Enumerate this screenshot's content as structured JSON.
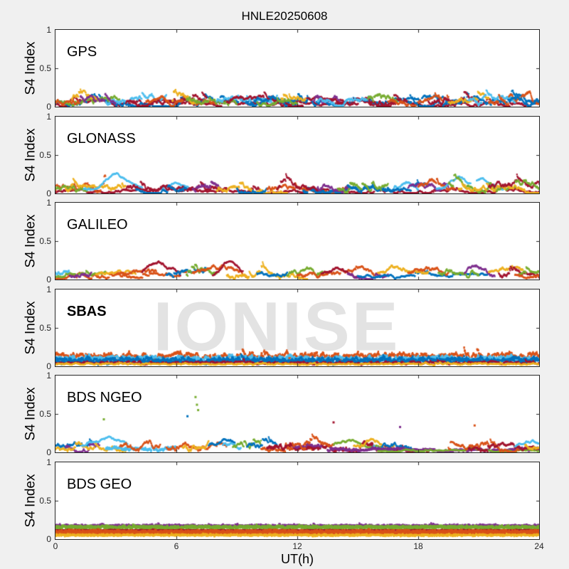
{
  "title": "HNLE20250608",
  "xlabel": "UT(h)",
  "ylabel": "S4 Index",
  "watermark": "IONISE",
  "colors": {
    "background": "#F0F0F0",
    "panel_bg": "#FFFFFF",
    "axes": "#262626",
    "watermark": "#E3E3E3",
    "palette": [
      "#0072BD",
      "#D95319",
      "#EDB120",
      "#7E2F8E",
      "#77AC30",
      "#4DBEEE",
      "#A2142F"
    ]
  },
  "x_ticks": {
    "values": [
      0,
      6,
      12,
      18,
      24
    ],
    "labels": [
      "0",
      "6",
      "12",
      "18",
      "24"
    ]
  },
  "y_ticks": {
    "values": [
      0,
      0.5,
      1
    ],
    "labels": [
      "0",
      "0.5",
      "1"
    ]
  },
  "chart_data": [
    {
      "type": "scatter",
      "label": "GPS",
      "label_bold": false,
      "watermark": false,
      "xlim": [
        0,
        24
      ],
      "ylim": [
        0,
        1
      ],
      "grid": false,
      "series": [
        {
          "c": 6,
          "t0": 0,
          "t1": 24,
          "b": 0.035,
          "n": 0.035
        },
        {
          "c": 0,
          "t0": 0,
          "t1": 24,
          "b": 0.05,
          "n": 0.045
        },
        {
          "c": 4,
          "t0": 0,
          "t1": 3.2,
          "b": 0.08,
          "n": 0.05
        },
        {
          "c": 2,
          "t0": 0.8,
          "t1": 2.2,
          "b": 0.1,
          "n": 0.06
        },
        {
          "c": 5,
          "t0": 2.5,
          "t1": 5.5,
          "b": 0.07,
          "n": 0.05
        },
        {
          "c": 6,
          "t0": 3.5,
          "t1": 7.5,
          "b": 0.06,
          "n": 0.05
        },
        {
          "c": 3,
          "t0": 1.2,
          "t1": 3.0,
          "b": 0.07,
          "n": 0.05
        },
        {
          "c": 1,
          "t0": 4.5,
          "t1": 8.0,
          "b": 0.06,
          "n": 0.05
        },
        {
          "c": 2,
          "t0": 5.8,
          "t1": 7.0,
          "b": 0.09,
          "n": 0.06
        },
        {
          "c": 4,
          "t0": 6.5,
          "t1": 9.0,
          "b": 0.08,
          "n": 0.055
        },
        {
          "c": 5,
          "t0": 8.0,
          "t1": 11.0,
          "b": 0.08,
          "n": 0.05
        },
        {
          "c": 6,
          "t0": 8.5,
          "t1": 13.5,
          "b": 0.055,
          "n": 0.045
        },
        {
          "c": 0,
          "t0": 9.5,
          "t1": 12.5,
          "b": 0.06,
          "n": 0.05
        },
        {
          "c": 2,
          "t0": 11.2,
          "t1": 12.4,
          "b": 0.1,
          "n": 0.06
        },
        {
          "c": 3,
          "t0": 12.8,
          "t1": 14.2,
          "b": 0.09,
          "n": 0.06
        },
        {
          "c": 6,
          "t0": 13.5,
          "t1": 17.5,
          "b": 0.06,
          "n": 0.05
        },
        {
          "c": 5,
          "t0": 13.0,
          "t1": 15.5,
          "b": 0.07,
          "n": 0.05
        },
        {
          "c": 4,
          "t0": 15.5,
          "t1": 17.0,
          "b": 0.09,
          "n": 0.06
        },
        {
          "c": 1,
          "t0": 16.5,
          "t1": 19.5,
          "b": 0.06,
          "n": 0.05
        },
        {
          "c": 0,
          "t0": 17.5,
          "t1": 20.5,
          "b": 0.055,
          "n": 0.05
        },
        {
          "c": 6,
          "t0": 18.5,
          "t1": 21.0,
          "b": 0.08,
          "n": 0.055
        },
        {
          "c": 2,
          "t0": 19.5,
          "t1": 21.5,
          "b": 0.07,
          "n": 0.05
        },
        {
          "c": 5,
          "t0": 20.5,
          "t1": 23.0,
          "b": 0.07,
          "n": 0.05
        },
        {
          "c": 1,
          "t0": 21.5,
          "t1": 24,
          "b": 0.07,
          "n": 0.055
        },
        {
          "c": 0,
          "t0": 22.5,
          "t1": 24,
          "b": 0.08,
          "n": 0.05
        },
        {
          "c": 4,
          "t0": 10,
          "t1": 12,
          "b": 0.05,
          "n": 0.04
        },
        {
          "c": 1,
          "t0": 0,
          "t1": 1.2,
          "b": 0.06,
          "n": 0.05
        }
      ]
    },
    {
      "type": "scatter",
      "label": "GLONASS",
      "label_bold": false,
      "watermark": false,
      "xlim": [
        0,
        24
      ],
      "ylim": [
        0,
        1
      ],
      "grid": false,
      "series": [
        {
          "c": 6,
          "t0": 0,
          "t1": 24,
          "b": 0.025,
          "n": 0.025
        },
        {
          "c": 1,
          "t0": 0,
          "t1": 2.5,
          "b": 0.06,
          "n": 0.05
        },
        {
          "c": 4,
          "t0": 0,
          "t1": 1.8,
          "b": 0.07,
          "n": 0.05
        },
        {
          "c": 2,
          "t0": 0.5,
          "t1": 3.5,
          "b": 0.06,
          "n": 0.05
        },
        {
          "c": 5,
          "t0": 1.4,
          "t1": 4.3,
          "b": 0.06,
          "n": 0.025,
          "p": 0.18,
          "tc": 3.05,
          "w": 0.55
        },
        {
          "c": 5,
          "t0": 5.2,
          "t1": 6.6,
          "b": 0.05,
          "n": 0.025,
          "p": 0.11,
          "tc": 6.0,
          "w": 0.4
        },
        {
          "c": 6,
          "t0": 3.5,
          "t1": 8.5,
          "b": 0.05,
          "n": 0.05
        },
        {
          "c": 0,
          "t0": 4.0,
          "t1": 6.5,
          "b": 0.05,
          "n": 0.04
        },
        {
          "c": 3,
          "t0": 6.8,
          "t1": 8.2,
          "b": 0.06,
          "n": 0.05
        },
        {
          "c": 2,
          "t0": 8.0,
          "t1": 11.5,
          "b": 0.055,
          "n": 0.05
        },
        {
          "c": 0,
          "t0": 9.0,
          "t1": 10.5,
          "b": 0.07,
          "n": 0.05
        },
        {
          "c": 1,
          "t0": 10.5,
          "t1": 14.5,
          "b": 0.055,
          "n": 0.05
        },
        {
          "c": 0,
          "t0": 12.3,
          "t1": 16.8,
          "b": 0.03,
          "n": 0.035,
          "th": 2
        },
        {
          "c": 6,
          "t0": 11.0,
          "t1": 13.0,
          "b": 0.06,
          "n": 0.05
        },
        {
          "c": 3,
          "t0": 13.0,
          "t1": 14.5,
          "b": 0.07,
          "n": 0.05
        },
        {
          "c": 4,
          "t0": 14.0,
          "t1": 16.5,
          "b": 0.06,
          "n": 0.05
        },
        {
          "c": 5,
          "t0": 16.8,
          "t1": 18.0,
          "b": 0.06,
          "n": 0.035,
          "p": 0.07,
          "tc": 17.4,
          "w": 0.35
        },
        {
          "c": 0,
          "t0": 16.5,
          "t1": 18.5,
          "b": 0.06,
          "n": 0.04
        },
        {
          "c": 3,
          "t0": 17.5,
          "t1": 19.5,
          "b": 0.065,
          "n": 0.05
        },
        {
          "c": 1,
          "t0": 18.0,
          "t1": 19.8,
          "b": 0.07,
          "n": 0.05
        },
        {
          "c": 5,
          "t0": 18.9,
          "t1": 20.6,
          "b": 0.05,
          "n": 0.025,
          "p": 0.15,
          "tc": 20.1,
          "w": 0.5
        },
        {
          "c": 5,
          "t0": 20.9,
          "t1": 22.3,
          "b": 0.05,
          "n": 0.025,
          "p": 0.12,
          "tc": 21.0,
          "w": 0.55
        },
        {
          "c": 4,
          "t0": 19.5,
          "t1": 22.5,
          "b": 0.06,
          "n": 0.05
        },
        {
          "c": 2,
          "t0": 20.0,
          "t1": 24,
          "b": 0.06,
          "n": 0.05
        },
        {
          "c": 6,
          "t0": 21.5,
          "t1": 24,
          "b": 0.07,
          "n": 0.055
        },
        {
          "c": 4,
          "t0": 22.8,
          "t1": 24,
          "b": 0.08,
          "n": 0.05
        }
      ]
    },
    {
      "type": "scatter",
      "label": "GALILEO",
      "label_bold": false,
      "watermark": false,
      "xlim": [
        0,
        24
      ],
      "ylim": [
        0,
        1
      ],
      "grid": false,
      "series": [
        {
          "c": 1,
          "t0": 0,
          "t1": 6.5,
          "b": 0.035,
          "n": 0.03
        },
        {
          "c": 4,
          "t0": 0,
          "t1": 2.5,
          "b": 0.04,
          "n": 0.03
        },
        {
          "c": 5,
          "t0": 0,
          "t1": 0.7,
          "b": 0.09,
          "n": 0.04
        },
        {
          "c": 3,
          "t0": 0.7,
          "t1": 1.8,
          "b": 0.07,
          "n": 0.04
        },
        {
          "c": 2,
          "t0": 2.0,
          "t1": 4.0,
          "b": 0.05,
          "n": 0.03,
          "p": 0.06,
          "tc": 3.0,
          "w": 0.6
        },
        {
          "c": 1,
          "t0": 3.0,
          "t1": 5.0,
          "b": 0.05,
          "n": 0.04,
          "p": 0.08,
          "tc": 4.2,
          "w": 0.6
        },
        {
          "c": 6,
          "t0": 4.3,
          "t1": 6.2,
          "b": 0.05,
          "n": 0.03,
          "p": 0.17,
          "tc": 5.1,
          "w": 0.5
        },
        {
          "c": 0,
          "t0": 5.5,
          "t1": 7.5,
          "b": 0.06,
          "n": 0.04
        },
        {
          "c": 4,
          "t0": 6.5,
          "t1": 8.0,
          "b": 0.07,
          "n": 0.05
        },
        {
          "c": 1,
          "t0": 6.8,
          "t1": 9.5,
          "b": 0.05,
          "n": 0.04,
          "p": 0.09,
          "tc": 8.0,
          "w": 0.8
        },
        {
          "c": 6,
          "t0": 7.8,
          "t1": 9.3,
          "b": 0.05,
          "n": 0.03,
          "p": 0.22,
          "tc": 8.7,
          "w": 0.35
        },
        {
          "c": 2,
          "t0": 8.5,
          "t1": 12.5,
          "b": 0.06,
          "n": 0.05
        },
        {
          "c": 0,
          "t0": 10.0,
          "t1": 11.5,
          "b": 0.07,
          "n": 0.04
        },
        {
          "c": 4,
          "t0": 11.5,
          "t1": 13.5,
          "b": 0.055,
          "n": 0.04,
          "p": 0.07,
          "tc": 12.6,
          "w": 0.5
        },
        {
          "c": 1,
          "t0": 12.0,
          "t1": 16.0,
          "b": 0.05,
          "n": 0.04
        },
        {
          "c": 6,
          "t0": 13.2,
          "t1": 15.0,
          "b": 0.05,
          "n": 0.03,
          "p": 0.1,
          "tc": 14.0,
          "w": 0.5
        },
        {
          "c": 3,
          "t0": 14.5,
          "t1": 16.5,
          "b": 0.06,
          "n": 0.04
        },
        {
          "c": 0,
          "t0": 15.0,
          "t1": 21.5,
          "b": 0.04,
          "n": 0.025
        },
        {
          "c": 2,
          "t0": 16.0,
          "t1": 18.5,
          "b": 0.06,
          "n": 0.04,
          "p": 0.08,
          "tc": 17.2,
          "w": 0.7
        },
        {
          "c": 1,
          "t0": 17.5,
          "t1": 19.5,
          "b": 0.06,
          "n": 0.04,
          "p": 0.09,
          "tc": 18.5,
          "w": 0.6
        },
        {
          "c": 4,
          "t0": 19.0,
          "t1": 21.0,
          "b": 0.07,
          "n": 0.05
        },
        {
          "c": 3,
          "t0": 20.3,
          "t1": 21.8,
          "b": 0.06,
          "n": 0.04,
          "p": 0.1,
          "tc": 21.0,
          "w": 0.4
        },
        {
          "c": 2,
          "t0": 21.5,
          "t1": 23.2,
          "b": 0.06,
          "n": 0.04,
          "p": 0.11,
          "tc": 22.4,
          "w": 0.5
        },
        {
          "c": 6,
          "t0": 22.0,
          "t1": 24,
          "b": 0.07,
          "n": 0.05
        },
        {
          "c": 4,
          "t0": 23.0,
          "t1": 24,
          "b": 0.06,
          "n": 0.04
        },
        {
          "c": 1,
          "t0": 22.8,
          "t1": 24,
          "b": 0.05,
          "n": 0.03
        }
      ]
    },
    {
      "type": "scatter",
      "label": "SBAS",
      "label_bold": true,
      "watermark": true,
      "xlim": [
        0,
        24
      ],
      "ylim": [
        0,
        1
      ],
      "grid": false,
      "series": [
        {
          "c": 1,
          "t0": 0,
          "t1": 24,
          "b": 0.135,
          "n": 0.065,
          "f": 0.22,
          "th": 2
        },
        {
          "c": 5,
          "t0": 0,
          "t1": 24,
          "b": 0.105,
          "n": 0.05,
          "f": 0.22,
          "th": 2
        },
        {
          "c": 0,
          "t0": 0,
          "t1": 24,
          "b": 0.085,
          "n": 0.05,
          "f": 0.22,
          "th": 2
        },
        {
          "c": 0,
          "t0": 0,
          "t1": 24,
          "b": 0.06,
          "n": 0.04,
          "f": 0.22,
          "th": 2
        },
        {
          "c": 6,
          "t0": 0,
          "t1": 24,
          "b": 0.045,
          "n": 0.03,
          "f": 0.22
        },
        {
          "c": 2,
          "t0": 0,
          "t1": 24,
          "b": 0.03,
          "n": 0.02,
          "f": 0.22
        }
      ]
    },
    {
      "type": "scatter",
      "label": "BDS NGEO",
      "label_bold": false,
      "watermark": false,
      "xlim": [
        0,
        24
      ],
      "ylim": [
        0,
        1
      ],
      "grid": false,
      "series": [
        {
          "c": 0,
          "t0": 0,
          "t1": 1.8,
          "b": 0.07,
          "n": 0.05
        },
        {
          "c": 3,
          "t0": 0.5,
          "t1": 2.2,
          "b": 0.06,
          "n": 0.05
        },
        {
          "c": 2,
          "t0": 0,
          "t1": 3.5,
          "b": 0.05,
          "n": 0.04
        },
        {
          "c": 5,
          "t0": 1.3,
          "t1": 3.6,
          "b": 0.05,
          "n": 0.025,
          "p": 0.13,
          "tc": 2.5,
          "w": 0.7
        },
        {
          "c": 5,
          "t0": 2.5,
          "t1": 6.0,
          "b": 0.04,
          "n": 0.035,
          "th": 2
        },
        {
          "c": 1,
          "t0": 3.2,
          "t1": 5.2,
          "b": 0.07,
          "n": 0.05
        },
        {
          "c": 1,
          "t0": 5.5,
          "t1": 8.5,
          "b": 0.06,
          "n": 0.05
        },
        {
          "c": 2,
          "t0": 6.3,
          "t1": 7.6,
          "b": 0.08,
          "n": 0.055
        },
        {
          "c": 0,
          "t0": 7.6,
          "t1": 8.9,
          "b": 0.06,
          "n": 0.035,
          "p": 0.08,
          "tc": 8.2,
          "w": 0.4
        },
        {
          "c": 5,
          "t0": 8.3,
          "t1": 9.2,
          "b": 0.09,
          "n": 0.045
        },
        {
          "c": 4,
          "t0": 8.8,
          "t1": 10.2,
          "b": 0.06,
          "n": 0.05
        },
        {
          "c": 0,
          "t0": 9.5,
          "t1": 11.0,
          "b": 0.07,
          "n": 0.05
        },
        {
          "c": 1,
          "t0": 10.2,
          "t1": 12.8,
          "b": 0.06,
          "n": 0.05
        },
        {
          "c": 6,
          "t0": 10.5,
          "t1": 18.5,
          "b": 0.045,
          "n": 0.045,
          "th": 2
        },
        {
          "c": 3,
          "t0": 11.8,
          "t1": 13.2,
          "b": 0.06,
          "n": 0.05
        },
        {
          "c": 1,
          "t0": 11.5,
          "t1": 13.8,
          "b": 0.06,
          "n": 0.05
        },
        {
          "c": 4,
          "t0": 13.8,
          "t1": 16.2,
          "b": 0.05,
          "n": 0.03,
          "p": 0.1,
          "tc": 14.6,
          "w": 0.7
        },
        {
          "c": 2,
          "t0": 14.8,
          "t1": 16.8,
          "b": 0.05,
          "n": 0.035,
          "p": 0.11,
          "tc": 15.7,
          "w": 0.6
        },
        {
          "c": 5,
          "t0": 15.8,
          "t1": 16.6,
          "b": 0.08,
          "n": 0.04
        },
        {
          "c": 0,
          "t0": 16.2,
          "t1": 17.8,
          "b": 0.06,
          "n": 0.045
        },
        {
          "c": 3,
          "t0": 13.5,
          "t1": 24,
          "b": 0.025,
          "n": 0.02,
          "th": 2
        },
        {
          "c": 4,
          "t0": 16.0,
          "t1": 24,
          "b": 0.018,
          "n": 0.015
        },
        {
          "c": 1,
          "t0": 19.5,
          "t1": 23.0,
          "b": 0.06,
          "n": 0.05
        },
        {
          "c": 6,
          "t0": 20.5,
          "t1": 24,
          "b": 0.05,
          "n": 0.045
        },
        {
          "c": 5,
          "t0": 22.8,
          "t1": 24,
          "b": 0.05,
          "n": 0.025,
          "p": 0.09,
          "tc": 23.6,
          "w": 0.5
        },
        {
          "c": 2,
          "t0": 23.3,
          "t1": 24,
          "b": 0.09,
          "n": 0.04
        },
        {
          "c": 4,
          "pts": [
            [
              2.4,
              0.43
            ]
          ]
        },
        {
          "c": 4,
          "pts": [
            [
              6.95,
              0.72
            ],
            [
              7.02,
              0.62
            ],
            [
              7.08,
              0.55
            ]
          ]
        },
        {
          "c": 0,
          "pts": [
            [
              6.55,
              0.47
            ]
          ]
        },
        {
          "c": 6,
          "pts": [
            [
              13.8,
              0.39
            ]
          ]
        },
        {
          "c": 3,
          "pts": [
            [
              17.1,
              0.33
            ]
          ]
        },
        {
          "c": 1,
          "pts": [
            [
              20.8,
              0.35
            ]
          ]
        }
      ]
    },
    {
      "type": "scatter",
      "label": "BDS GEO",
      "label_bold": false,
      "watermark": false,
      "xlim": [
        0,
        24
      ],
      "ylim": [
        0,
        1
      ],
      "grid": false,
      "series": [
        {
          "c": 3,
          "t0": 0,
          "t1": 24,
          "b": 0.175,
          "n": 0.016,
          "f": 0.3,
          "th": 2
        },
        {
          "c": 4,
          "t0": 0,
          "t1": 24,
          "b": 0.155,
          "n": 0.013,
          "f": 0.3,
          "th": 3
        },
        {
          "c": 6,
          "t0": 0,
          "t1": 24,
          "b": 0.118,
          "n": 0.007,
          "f": 0.3
        },
        {
          "c": 1,
          "t0": 0,
          "t1": 24,
          "b": 0.088,
          "n": 0.015,
          "f": 0.3,
          "th": 4
        },
        {
          "c": 2,
          "t0": 0,
          "t1": 24,
          "b": 0.052,
          "n": 0.007,
          "f": 0.3,
          "th": 2
        }
      ]
    }
  ]
}
